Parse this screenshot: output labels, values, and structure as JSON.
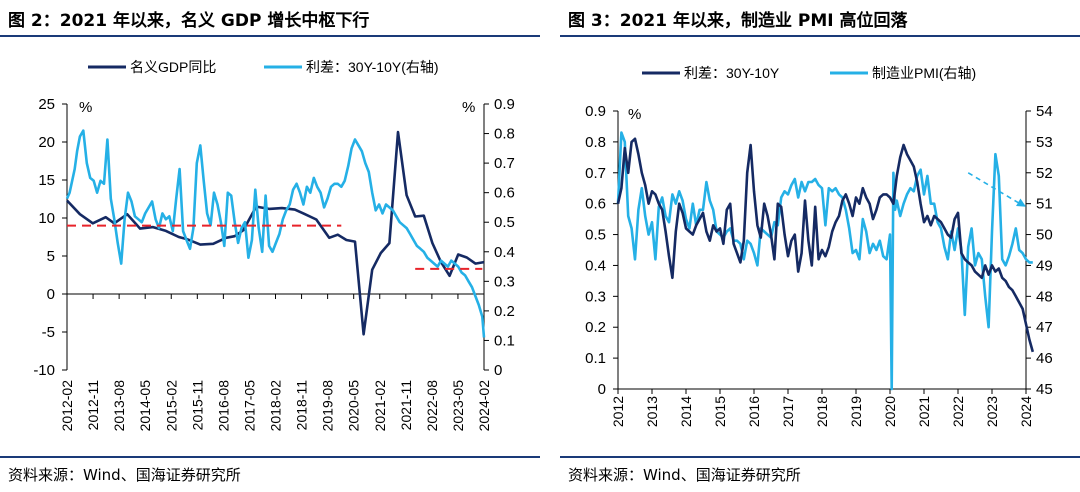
{
  "figures": [
    {
      "title": "图 2：2021 年以来，名义 GDP 增长中枢下行",
      "source": "资料来源：Wind、国海证券研究所"
    },
    {
      "title": "图 3：2021 年以来，制造业 PMI 高位回落",
      "source": "资料来源：Wind、国海证券研究所"
    }
  ],
  "colors": {
    "dark": "#152a63",
    "light": "#25b0e6",
    "red": "#e8232a",
    "rule": "#1a3a78"
  },
  "chart_data": [
    {
      "type": "line",
      "legend_position": "top",
      "y_unit_left": "%",
      "y_unit_right": "%",
      "ylim_left": [
        -10,
        25
      ],
      "ylim_right": [
        0,
        0.9
      ],
      "yticks_left": [
        "-10",
        "-5",
        "0",
        "5",
        "10",
        "15",
        "20",
        "25"
      ],
      "yticks_right": [
        "0",
        "0.1",
        "0.2",
        "0.3",
        "0.4",
        "0.5",
        "0.6",
        "0.7",
        "0.8",
        "0.9"
      ],
      "x_categories": [
        "2012-02",
        "2012-11",
        "2013-08",
        "2014-05",
        "2015-02",
        "2015-11",
        "2016-08",
        "2017-05",
        "2018-02",
        "2018-11",
        "2019-08",
        "2020-05",
        "2021-02",
        "2021-11",
        "2022-08",
        "2023-05",
        "2024-02"
      ],
      "x_range": [
        "2012-02",
        "2024-02"
      ],
      "series": [
        {
          "name": "名义GDP同比",
          "axis": "left",
          "color": "dark",
          "x": [
            2012.125,
            2012.5,
            2012.875,
            2013.25,
            2013.5,
            2013.875,
            2014.25,
            2014.625,
            2015.0,
            2015.375,
            2015.625,
            2016.0,
            2016.375,
            2016.75,
            2017.0,
            2017.25,
            2017.625,
            2018.0,
            2018.375,
            2018.75,
            2019.0,
            2019.375,
            2019.75,
            2020.0,
            2020.25,
            2020.5,
            2020.75,
            2021.0,
            2021.25,
            2021.5,
            2021.75,
            2022.0,
            2022.25,
            2022.5,
            2022.75,
            2023.0,
            2023.25,
            2023.5,
            2023.75,
            2024.0,
            2024.25
          ],
          "y": [
            12.3,
            10.5,
            9.3,
            10.1,
            9.3,
            10.5,
            8.6,
            8.8,
            8.3,
            7.5,
            7.2,
            6.5,
            6.6,
            7.4,
            7.6,
            8.4,
            11.5,
            11.2,
            11.3,
            11.1,
            10.6,
            9.8,
            7.4,
            7.8,
            7.1,
            6.9,
            -5.3,
            3.2,
            5.4,
            6.7,
            21.3,
            13.0,
            10.2,
            10.3,
            6.7,
            4.2,
            2.4,
            5.2,
            4.8,
            4.0,
            4.2
          ]
        },
        {
          "name": "利差：30Y-10Y(右轴)",
          "axis": "right",
          "color": "light",
          "x": [
            2012.125,
            2012.2,
            2012.35,
            2012.42,
            2012.5,
            2012.6,
            2012.7,
            2012.8,
            2012.9,
            2013.0,
            2013.1,
            2013.2,
            2013.3,
            2013.4,
            2013.5,
            2013.6,
            2013.7,
            2013.8,
            2013.9,
            2014.0,
            2014.1,
            2014.2,
            2014.3,
            2014.4,
            2014.5,
            2014.6,
            2014.7,
            2014.8,
            2014.9,
            2015.0,
            2015.1,
            2015.2,
            2015.3,
            2015.4,
            2015.5,
            2015.6,
            2015.7,
            2015.8,
            2015.9,
            2016.0,
            2016.1,
            2016.2,
            2016.3,
            2016.4,
            2016.5,
            2016.6,
            2016.7,
            2016.8,
            2016.9,
            2017.0,
            2017.1,
            2017.2,
            2017.3,
            2017.4,
            2017.5,
            2017.6,
            2017.7,
            2017.8,
            2017.9,
            2018.0,
            2018.1,
            2018.2,
            2018.3,
            2018.4,
            2018.5,
            2018.6,
            2018.7,
            2018.8,
            2018.9,
            2019.0,
            2019.1,
            2019.2,
            2019.3,
            2019.4,
            2019.5,
            2019.6,
            2019.7,
            2019.8,
            2019.9,
            2020.0,
            2020.1,
            2020.2,
            2020.3,
            2020.4,
            2020.5,
            2020.6,
            2020.7,
            2020.8,
            2020.9,
            2021.0,
            2021.1,
            2021.2,
            2021.3,
            2021.4,
            2021.5,
            2021.6,
            2021.7,
            2021.8,
            2021.9,
            2022.0,
            2022.1,
            2022.2,
            2022.3,
            2022.4,
            2022.5,
            2022.6,
            2022.7,
            2022.8,
            2022.9,
            2023.0,
            2023.1,
            2023.2,
            2023.3,
            2023.4,
            2023.5,
            2023.6,
            2023.7,
            2023.8,
            2023.9,
            2024.0,
            2024.1,
            2024.2,
            2024.25
          ],
          "y": [
            0.58,
            0.6,
            0.68,
            0.74,
            0.79,
            0.81,
            0.7,
            0.65,
            0.64,
            0.6,
            0.64,
            0.63,
            0.78,
            0.58,
            0.51,
            0.43,
            0.36,
            0.51,
            0.6,
            0.57,
            0.52,
            0.51,
            0.5,
            0.53,
            0.55,
            0.57,
            0.51,
            0.48,
            0.53,
            0.51,
            0.52,
            0.47,
            0.58,
            0.68,
            0.47,
            0.44,
            0.41,
            0.48,
            0.7,
            0.76,
            0.64,
            0.53,
            0.49,
            0.6,
            0.56,
            0.5,
            0.42,
            0.6,
            0.59,
            0.5,
            0.43,
            0.48,
            0.5,
            0.38,
            0.44,
            0.61,
            0.48,
            0.4,
            0.59,
            0.42,
            0.4,
            0.43,
            0.46,
            0.51,
            0.54,
            0.56,
            0.61,
            0.63,
            0.6,
            0.56,
            0.62,
            0.6,
            0.65,
            0.62,
            0.6,
            0.55,
            0.58,
            0.62,
            0.63,
            0.63,
            0.62,
            0.64,
            0.69,
            0.75,
            0.78,
            0.76,
            0.74,
            0.7,
            0.67,
            0.6,
            0.54,
            0.56,
            0.53,
            0.56,
            0.55,
            0.54,
            0.52,
            0.5,
            0.49,
            0.48,
            0.46,
            0.44,
            0.42,
            0.41,
            0.4,
            0.38,
            0.37,
            0.36,
            0.35,
            0.37,
            0.36,
            0.35,
            0.37,
            0.36,
            0.35,
            0.33,
            0.32,
            0.3,
            0.28,
            0.25,
            0.22,
            0.18,
            0.11
          ]
        },
        {
          "name": "",
          "axis": "left",
          "color": "red",
          "dashed": true,
          "x": [
            2012.125,
            2020.1
          ],
          "y": [
            9.0,
            9.0
          ]
        },
        {
          "name": "",
          "axis": "left",
          "color": "red",
          "dashed": true,
          "x": [
            2022.25,
            2024.2
          ],
          "y": [
            3.3,
            3.3
          ]
        }
      ]
    },
    {
      "type": "line",
      "legend_position": "top",
      "y_unit_left": "%",
      "ylim_left": [
        0,
        0.9
      ],
      "ylim_right": [
        45,
        54
      ],
      "yticks_left": [
        "0",
        "0.1",
        "0.2",
        "0.3",
        "0.4",
        "0.5",
        "0.6",
        "0.7",
        "0.8",
        "0.9"
      ],
      "yticks_right": [
        "45",
        "46",
        "47",
        "48",
        "49",
        "50",
        "51",
        "52",
        "53",
        "54"
      ],
      "x_categories": [
        "2012",
        "2013",
        "2014",
        "2015",
        "2016",
        "2017",
        "2018",
        "2019",
        "2020",
        "2021",
        "2022",
        "2023",
        "2024"
      ],
      "x_range": [
        2012,
        2024
      ],
      "series": [
        {
          "name": "利差：30Y-10Y",
          "axis": "left",
          "color": "dark",
          "x": [
            2012.0,
            2012.1,
            2012.2,
            2012.3,
            2012.4,
            2012.5,
            2012.6,
            2012.7,
            2012.8,
            2012.9,
            2013.0,
            2013.1,
            2013.2,
            2013.3,
            2013.4,
            2013.5,
            2013.6,
            2013.7,
            2013.8,
            2013.9,
            2014.0,
            2014.1,
            2014.2,
            2014.3,
            2014.4,
            2014.5,
            2014.6,
            2014.7,
            2014.8,
            2014.9,
            2015.0,
            2015.1,
            2015.2,
            2015.3,
            2015.4,
            2015.5,
            2015.6,
            2015.7,
            2015.8,
            2015.9,
            2016.0,
            2016.1,
            2016.2,
            2016.3,
            2016.4,
            2016.5,
            2016.6,
            2016.7,
            2016.8,
            2016.9,
            2017.0,
            2017.1,
            2017.2,
            2017.3,
            2017.4,
            2017.5,
            2017.6,
            2017.7,
            2017.8,
            2017.9,
            2018.0,
            2018.1,
            2018.2,
            2018.3,
            2018.4,
            2018.5,
            2018.6,
            2018.7,
            2018.8,
            2018.9,
            2019.0,
            2019.1,
            2019.2,
            2019.3,
            2019.4,
            2019.5,
            2019.6,
            2019.7,
            2019.8,
            2019.9,
            2020.0,
            2020.1,
            2020.2,
            2020.3,
            2020.4,
            2020.5,
            2020.6,
            2020.7,
            2020.8,
            2020.9,
            2021.0,
            2021.1,
            2021.2,
            2021.3,
            2021.4,
            2021.5,
            2021.6,
            2021.7,
            2021.8,
            2021.9,
            2022.0,
            2022.1,
            2022.2,
            2022.3,
            2022.4,
            2022.5,
            2022.6,
            2022.7,
            2022.8,
            2022.9,
            2023.0,
            2023.1,
            2023.2,
            2023.3,
            2023.4,
            2023.5,
            2023.6,
            2023.7,
            2023.8,
            2023.9,
            2024.0,
            2024.1,
            2024.2
          ],
          "y": [
            0.6,
            0.65,
            0.78,
            0.7,
            0.8,
            0.81,
            0.76,
            0.7,
            0.66,
            0.6,
            0.64,
            0.63,
            0.6,
            0.58,
            0.51,
            0.43,
            0.36,
            0.51,
            0.6,
            0.57,
            0.52,
            0.51,
            0.5,
            0.53,
            0.55,
            0.57,
            0.51,
            0.48,
            0.53,
            0.51,
            0.52,
            0.47,
            0.58,
            0.6,
            0.47,
            0.44,
            0.41,
            0.48,
            0.7,
            0.79,
            0.64,
            0.53,
            0.49,
            0.6,
            0.56,
            0.5,
            0.42,
            0.6,
            0.59,
            0.5,
            0.43,
            0.48,
            0.5,
            0.38,
            0.44,
            0.61,
            0.48,
            0.4,
            0.59,
            0.42,
            0.45,
            0.43,
            0.46,
            0.51,
            0.54,
            0.56,
            0.61,
            0.63,
            0.6,
            0.56,
            0.62,
            0.6,
            0.65,
            0.62,
            0.6,
            0.55,
            0.58,
            0.62,
            0.63,
            0.63,
            0.62,
            0.6,
            0.69,
            0.75,
            0.79,
            0.76,
            0.74,
            0.72,
            0.67,
            0.6,
            0.54,
            0.56,
            0.53,
            0.56,
            0.55,
            0.54,
            0.52,
            0.5,
            0.49,
            0.55,
            0.57,
            0.44,
            0.42,
            0.41,
            0.4,
            0.38,
            0.37,
            0.36,
            0.4,
            0.37,
            0.4,
            0.38,
            0.39,
            0.36,
            0.35,
            0.33,
            0.32,
            0.3,
            0.28,
            0.26,
            0.21,
            0.16,
            0.12
          ]
        },
        {
          "name": "制造业PMI(右轴)",
          "axis": "right",
          "color": "light",
          "x": [
            2012.0,
            2012.1,
            2012.2,
            2012.3,
            2012.4,
            2012.5,
            2012.6,
            2012.7,
            2012.8,
            2012.9,
            2013.0,
            2013.1,
            2013.2,
            2013.3,
            2013.4,
            2013.5,
            2013.6,
            2013.7,
            2013.8,
            2013.9,
            2014.0,
            2014.1,
            2014.2,
            2014.3,
            2014.4,
            2014.5,
            2014.6,
            2014.7,
            2014.8,
            2014.9,
            2015.0,
            2015.1,
            2015.2,
            2015.3,
            2015.4,
            2015.5,
            2015.6,
            2015.7,
            2015.8,
            2015.9,
            2016.0,
            2016.1,
            2016.2,
            2016.3,
            2016.4,
            2016.5,
            2016.6,
            2016.7,
            2016.8,
            2016.9,
            2017.0,
            2017.1,
            2017.2,
            2017.3,
            2017.4,
            2017.5,
            2017.6,
            2017.7,
            2017.8,
            2017.9,
            2018.0,
            2018.1,
            2018.2,
            2018.3,
            2018.4,
            2018.5,
            2018.6,
            2018.7,
            2018.8,
            2018.9,
            2019.0,
            2019.1,
            2019.2,
            2019.3,
            2019.4,
            2019.5,
            2019.6,
            2019.7,
            2019.8,
            2019.9,
            2020.0,
            2020.05,
            2020.1,
            2020.15,
            2020.2,
            2020.3,
            2020.4,
            2020.5,
            2020.6,
            2020.7,
            2020.8,
            2020.9,
            2021.0,
            2021.1,
            2021.2,
            2021.3,
            2021.4,
            2021.5,
            2021.6,
            2021.7,
            2021.8,
            2021.9,
            2022.0,
            2022.1,
            2022.2,
            2022.3,
            2022.4,
            2022.5,
            2022.6,
            2022.7,
            2022.8,
            2022.9,
            2023.0,
            2023.1,
            2023.2,
            2023.3,
            2023.4,
            2023.5,
            2023.6,
            2023.7,
            2023.8,
            2023.9,
            2024.0,
            2024.1,
            2024.2
          ],
          "y": [
            51.0,
            53.3,
            53.0,
            50.6,
            50.2,
            49.2,
            50.8,
            51.5,
            50.6,
            50.0,
            50.4,
            49.2,
            50.9,
            51.2,
            50.6,
            50.4,
            51.3,
            51.0,
            51.4,
            51.1,
            50.5,
            50.2,
            51.0,
            50.3,
            50.8,
            50.8,
            51.7,
            51.1,
            50.8,
            50.1,
            50.0,
            49.9,
            50.1,
            50.2,
            49.8,
            49.8,
            49.7,
            49.2,
            49.8,
            49.7,
            49.4,
            49.0,
            50.2,
            50.1,
            50.0,
            49.9,
            50.4,
            50.3,
            51.2,
            51.4,
            51.3,
            51.6,
            51.8,
            51.2,
            51.7,
            51.4,
            51.7,
            51.7,
            51.8,
            51.6,
            51.5,
            50.3,
            51.5,
            51.4,
            51.5,
            51.3,
            51.2,
            50.8,
            50.2,
            49.4,
            49.5,
            49.2,
            50.5,
            50.1,
            49.4,
            49.7,
            49.5,
            49.8,
            49.3,
            49.2,
            50.0,
            45.0,
            52.0,
            50.8,
            51.1,
            50.6,
            51.0,
            51.3,
            51.5,
            51.4,
            51.9,
            52.1,
            51.3,
            51.9,
            51.0,
            51.0,
            50.4,
            50.2,
            49.6,
            49.2,
            50.1,
            49.5,
            50.2,
            49.5,
            47.4,
            49.6,
            50.2,
            49.0,
            49.4,
            49.2,
            48.0,
            47.0,
            50.1,
            52.6,
            51.9,
            49.2,
            49.0,
            49.3,
            49.7,
            50.2,
            49.5,
            49.4,
            49.2,
            49.1,
            49.1
          ]
        }
      ],
      "annotation": {
        "type": "dashed-arrow",
        "from": [
          2022.3,
          52.0
        ],
        "to": [
          2024.0,
          50.9
        ]
      }
    }
  ]
}
